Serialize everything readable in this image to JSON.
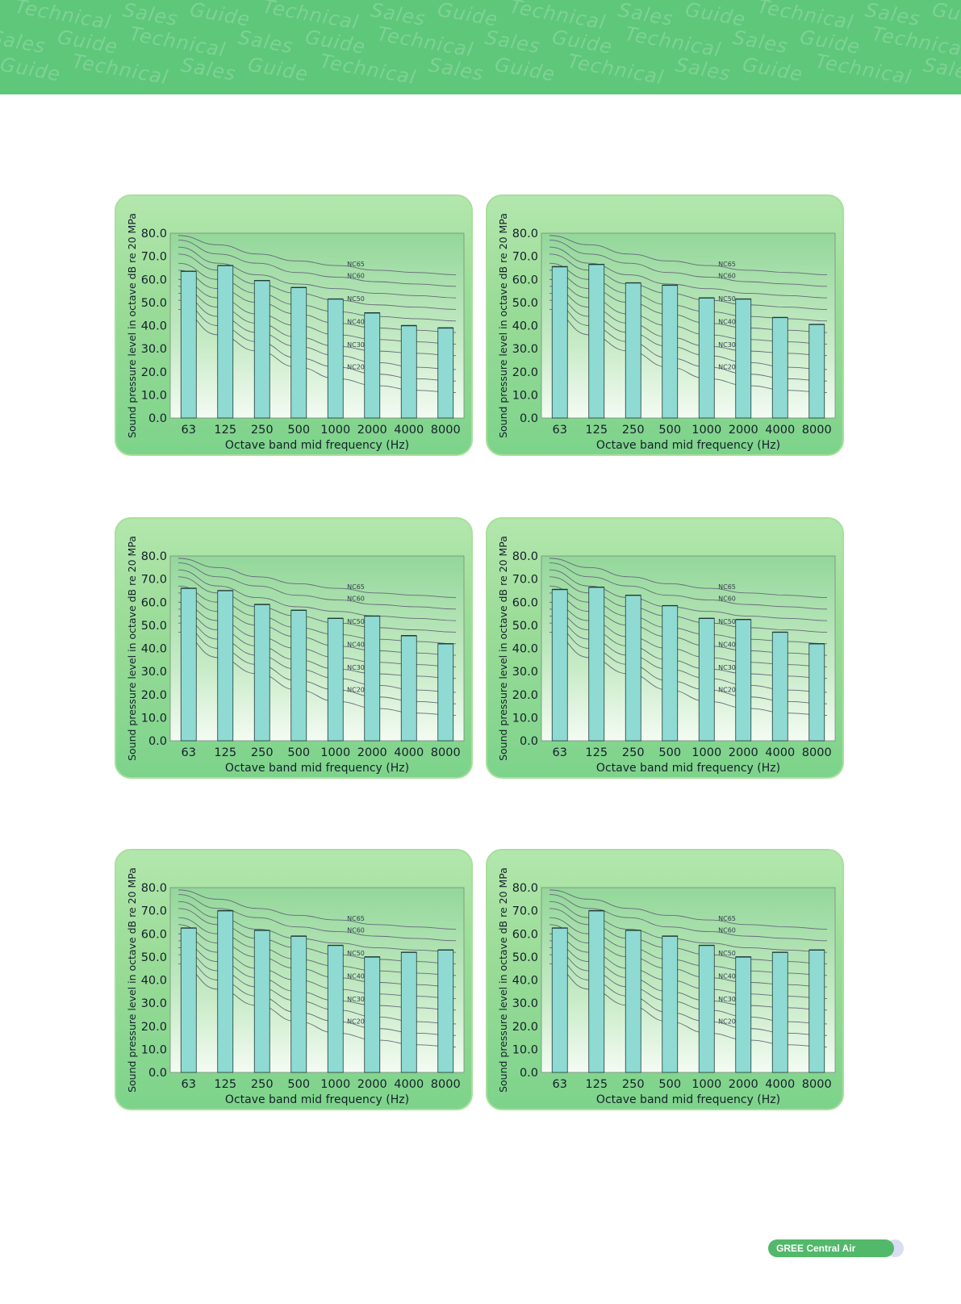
{
  "header": {
    "watermark_phrase": [
      "Technical",
      "Sales",
      "Guide"
    ]
  },
  "footer": {
    "badge_label": "GREE Central Air Conditioners"
  },
  "colors": {
    "banner": "#5ec77a",
    "bar_fill": "#8fdbd3",
    "nc_curve": "#666a7a",
    "panel_border": "#a8df9c"
  },
  "chart_data": [
    {
      "type": "bar",
      "categories": [
        "63",
        "125",
        "250",
        "500",
        "1000",
        "2000",
        "4000",
        "8000"
      ],
      "values": [
        63.5,
        66.0,
        59.5,
        56.5,
        51.5,
        45.5,
        40.0,
        39.0
      ],
      "ylabel": "Sound pressure level in octave dB re 20 MPa",
      "xlabel": "Octave band mid frequency (Hz)",
      "ylim": [
        0,
        80
      ],
      "yticks": [
        "0.0",
        "10.0",
        "20.0",
        "30.0",
        "40.0",
        "50.0",
        "60.0",
        "70.0",
        "80.0"
      ],
      "nc_curves": [
        {
          "name": "NC65",
          "values": [
            79,
            75,
            71,
            68,
            66,
            64,
            63,
            62
          ],
          "label": "NC65"
        },
        {
          "name": "NC60",
          "values": [
            77,
            71,
            67,
            63,
            61,
            59,
            58,
            57
          ],
          "label": "NC60"
        },
        {
          "name": "NC55",
          "values": [
            74,
            67,
            62,
            58,
            56,
            54,
            53,
            52
          ],
          "label": ""
        },
        {
          "name": "NC50",
          "values": [
            71,
            64,
            58,
            54,
            51,
            49,
            48,
            47
          ],
          "label": "NC50"
        },
        {
          "name": "NC45",
          "values": [
            67,
            60,
            54,
            49,
            46,
            44,
            43,
            42
          ],
          "label": ""
        },
        {
          "name": "NC40",
          "values": [
            64,
            56,
            50,
            45,
            41,
            39,
            38,
            37
          ],
          "label": "NC40"
        },
        {
          "name": "NC35",
          "values": [
            60,
            52,
            45,
            40,
            36,
            34,
            33,
            32
          ],
          "label": ""
        },
        {
          "name": "NC30",
          "values": [
            57,
            48,
            41,
            35,
            31,
            29,
            28,
            27
          ],
          "label": "NC30"
        },
        {
          "name": "NC25",
          "values": [
            54,
            44,
            37,
            31,
            27,
            24,
            22,
            21
          ],
          "label": ""
        },
        {
          "name": "NC20",
          "values": [
            51,
            40,
            33,
            26,
            22,
            19,
            17,
            16
          ],
          "label": "NC20"
        },
        {
          "name": "NC15",
          "values": [
            47,
            36,
            29,
            22,
            17,
            14,
            12,
            11
          ],
          "label": ""
        }
      ]
    },
    {
      "type": "bar",
      "categories": [
        "63",
        "125",
        "250",
        "500",
        "1000",
        "2000",
        "4000",
        "8000"
      ],
      "values": [
        65.5,
        66.5,
        58.5,
        57.5,
        52.0,
        51.5,
        43.5,
        40.5
      ],
      "ylabel": "Sound pressure level in octave dB re 20 MPa",
      "xlabel": "Octave band mid frequency (Hz)",
      "ylim": [
        0,
        80
      ],
      "yticks": [
        "0.0",
        "10.0",
        "20.0",
        "30.0",
        "40.0",
        "50.0",
        "60.0",
        "70.0",
        "80.0"
      ],
      "nc_curves": [
        {
          "name": "NC65",
          "values": [
            79,
            75,
            71,
            68,
            66,
            64,
            63,
            62
          ],
          "label": "NC65"
        },
        {
          "name": "NC60",
          "values": [
            77,
            71,
            67,
            63,
            61,
            59,
            58,
            57
          ],
          "label": "NC60"
        },
        {
          "name": "NC55",
          "values": [
            74,
            67,
            62,
            58,
            56,
            54,
            53,
            52
          ],
          "label": ""
        },
        {
          "name": "NC50",
          "values": [
            71,
            64,
            58,
            54,
            51,
            49,
            48,
            47
          ],
          "label": "NC50"
        },
        {
          "name": "NC45",
          "values": [
            67,
            60,
            54,
            49,
            46,
            44,
            43,
            42
          ],
          "label": ""
        },
        {
          "name": "NC40",
          "values": [
            64,
            56,
            50,
            45,
            41,
            39,
            38,
            37
          ],
          "label": "NC40"
        },
        {
          "name": "NC35",
          "values": [
            60,
            52,
            45,
            40,
            36,
            34,
            33,
            32
          ],
          "label": ""
        },
        {
          "name": "NC30",
          "values": [
            57,
            48,
            41,
            35,
            31,
            29,
            28,
            27
          ],
          "label": "NC30"
        },
        {
          "name": "NC25",
          "values": [
            54,
            44,
            37,
            31,
            27,
            24,
            22,
            21
          ],
          "label": ""
        },
        {
          "name": "NC20",
          "values": [
            51,
            40,
            33,
            26,
            22,
            19,
            17,
            16
          ],
          "label": "NC20"
        },
        {
          "name": "NC15",
          "values": [
            47,
            36,
            29,
            22,
            17,
            14,
            12,
            11
          ],
          "label": ""
        }
      ]
    },
    {
      "type": "bar",
      "categories": [
        "63",
        "125",
        "250",
        "500",
        "1000",
        "2000",
        "4000",
        "8000"
      ],
      "values": [
        66.0,
        65.0,
        59.0,
        56.5,
        53.0,
        54.0,
        45.5,
        42.0
      ],
      "ylabel": "Sound pressure level in octave dB re 20 MPa",
      "xlabel": "Octave band mid frequency (Hz)",
      "ylim": [
        0,
        80
      ],
      "yticks": [
        "0.0",
        "10.0",
        "20.0",
        "30.0",
        "40.0",
        "50.0",
        "60.0",
        "70.0",
        "80.0"
      ],
      "nc_curves": [
        {
          "name": "NC65",
          "values": [
            79,
            75,
            71,
            68,
            66,
            64,
            63,
            62
          ],
          "label": "NC65"
        },
        {
          "name": "NC60",
          "values": [
            77,
            71,
            67,
            63,
            61,
            59,
            58,
            57
          ],
          "label": "NC60"
        },
        {
          "name": "NC55",
          "values": [
            74,
            67,
            62,
            58,
            56,
            54,
            53,
            52
          ],
          "label": ""
        },
        {
          "name": "NC50",
          "values": [
            71,
            64,
            58,
            54,
            51,
            49,
            48,
            47
          ],
          "label": "NC50"
        },
        {
          "name": "NC45",
          "values": [
            67,
            60,
            54,
            49,
            46,
            44,
            43,
            42
          ],
          "label": ""
        },
        {
          "name": "NC40",
          "values": [
            64,
            56,
            50,
            45,
            41,
            39,
            38,
            37
          ],
          "label": "NC40"
        },
        {
          "name": "NC35",
          "values": [
            60,
            52,
            45,
            40,
            36,
            34,
            33,
            32
          ],
          "label": ""
        },
        {
          "name": "NC30",
          "values": [
            57,
            48,
            41,
            35,
            31,
            29,
            28,
            27
          ],
          "label": "NC30"
        },
        {
          "name": "NC25",
          "values": [
            54,
            44,
            37,
            31,
            27,
            24,
            22,
            21
          ],
          "label": ""
        },
        {
          "name": "NC20",
          "values": [
            51,
            40,
            33,
            26,
            22,
            19,
            17,
            16
          ],
          "label": "NC20"
        },
        {
          "name": "NC15",
          "values": [
            47,
            36,
            29,
            22,
            17,
            14,
            12,
            11
          ],
          "label": ""
        }
      ]
    },
    {
      "type": "bar",
      "categories": [
        "63",
        "125",
        "250",
        "500",
        "1000",
        "2000",
        "4000",
        "8000"
      ],
      "values": [
        65.5,
        66.5,
        63.0,
        58.5,
        53.0,
        52.5,
        47.0,
        42.0
      ],
      "ylabel": "Sound pressure level in octave dB re 20 MPa",
      "xlabel": "Octave band mid frequency (Hz)",
      "ylim": [
        0,
        80
      ],
      "yticks": [
        "0.0",
        "10.0",
        "20.0",
        "30.0",
        "40.0",
        "50.0",
        "60.0",
        "70.0",
        "80.0"
      ],
      "nc_curves": [
        {
          "name": "NC65",
          "values": [
            79,
            75,
            71,
            68,
            66,
            64,
            63,
            62
          ],
          "label": "NC65"
        },
        {
          "name": "NC60",
          "values": [
            77,
            71,
            67,
            63,
            61,
            59,
            58,
            57
          ],
          "label": "NC60"
        },
        {
          "name": "NC55",
          "values": [
            74,
            67,
            62,
            58,
            56,
            54,
            53,
            52
          ],
          "label": ""
        },
        {
          "name": "NC50",
          "values": [
            71,
            64,
            58,
            54,
            51,
            49,
            48,
            47
          ],
          "label": "NC50"
        },
        {
          "name": "NC45",
          "values": [
            67,
            60,
            54,
            49,
            46,
            44,
            43,
            42
          ],
          "label": ""
        },
        {
          "name": "NC40",
          "values": [
            64,
            56,
            50,
            45,
            41,
            39,
            38,
            37
          ],
          "label": "NC40"
        },
        {
          "name": "NC35",
          "values": [
            60,
            52,
            45,
            40,
            36,
            34,
            33,
            32
          ],
          "label": ""
        },
        {
          "name": "NC30",
          "values": [
            57,
            48,
            41,
            35,
            31,
            29,
            28,
            27
          ],
          "label": "NC30"
        },
        {
          "name": "NC25",
          "values": [
            54,
            44,
            37,
            31,
            27,
            24,
            22,
            21
          ],
          "label": ""
        },
        {
          "name": "NC20",
          "values": [
            51,
            40,
            33,
            26,
            22,
            19,
            17,
            16
          ],
          "label": "NC20"
        },
        {
          "name": "NC15",
          "values": [
            47,
            36,
            29,
            22,
            17,
            14,
            12,
            11
          ],
          "label": ""
        }
      ]
    },
    {
      "type": "bar",
      "categories": [
        "63",
        "125",
        "250",
        "500",
        "1000",
        "2000",
        "4000",
        "8000"
      ],
      "values": [
        62.5,
        70.0,
        61.5,
        59.0,
        55.0,
        50.0,
        52.0,
        53.0
      ],
      "ylabel": "Sound pressure level in octave dB re 20 MPa",
      "xlabel": "Octave band mid frequency (Hz)",
      "ylim": [
        0,
        80
      ],
      "yticks": [
        "0.0",
        "10.0",
        "20.0",
        "30.0",
        "40.0",
        "50.0",
        "60.0",
        "70.0",
        "80.0"
      ],
      "nc_curves": [
        {
          "name": "NC65",
          "values": [
            79,
            75,
            71,
            68,
            66,
            64,
            63,
            62
          ],
          "label": "NC65"
        },
        {
          "name": "NC60",
          "values": [
            77,
            71,
            67,
            63,
            61,
            59,
            58,
            57
          ],
          "label": "NC60"
        },
        {
          "name": "NC55",
          "values": [
            74,
            67,
            62,
            58,
            56,
            54,
            53,
            52
          ],
          "label": ""
        },
        {
          "name": "NC50",
          "values": [
            71,
            64,
            58,
            54,
            51,
            49,
            48,
            47
          ],
          "label": "NC50"
        },
        {
          "name": "NC45",
          "values": [
            67,
            60,
            54,
            49,
            46,
            44,
            43,
            42
          ],
          "label": ""
        },
        {
          "name": "NC40",
          "values": [
            64,
            56,
            50,
            45,
            41,
            39,
            38,
            37
          ],
          "label": "NC40"
        },
        {
          "name": "NC35",
          "values": [
            60,
            52,
            45,
            40,
            36,
            34,
            33,
            32
          ],
          "label": ""
        },
        {
          "name": "NC30",
          "values": [
            57,
            48,
            41,
            35,
            31,
            29,
            28,
            27
          ],
          "label": "NC30"
        },
        {
          "name": "NC25",
          "values": [
            54,
            44,
            37,
            31,
            27,
            24,
            22,
            21
          ],
          "label": ""
        },
        {
          "name": "NC20",
          "values": [
            51,
            40,
            33,
            26,
            22,
            19,
            17,
            16
          ],
          "label": "NC20"
        },
        {
          "name": "NC15",
          "values": [
            47,
            36,
            29,
            22,
            17,
            14,
            12,
            11
          ],
          "label": ""
        }
      ]
    },
    {
      "type": "bar",
      "categories": [
        "63",
        "125",
        "250",
        "500",
        "1000",
        "2000",
        "4000",
        "8000"
      ],
      "values": [
        62.5,
        70.0,
        61.5,
        59.0,
        55.0,
        50.0,
        52.0,
        53.0
      ],
      "ylabel": "Sound pressure level in octave dB re 20 MPa",
      "xlabel": "Octave band mid frequency (Hz)",
      "ylim": [
        0,
        80
      ],
      "yticks": [
        "0.0",
        "10.0",
        "20.0",
        "30.0",
        "40.0",
        "50.0",
        "60.0",
        "70.0",
        "80.0"
      ],
      "nc_curves": [
        {
          "name": "NC65",
          "values": [
            79,
            75,
            71,
            68,
            66,
            64,
            63,
            62
          ],
          "label": "NC65"
        },
        {
          "name": "NC60",
          "values": [
            77,
            71,
            67,
            63,
            61,
            59,
            58,
            57
          ],
          "label": "NC60"
        },
        {
          "name": "NC55",
          "values": [
            74,
            67,
            62,
            58,
            56,
            54,
            53,
            52
          ],
          "label": ""
        },
        {
          "name": "NC50",
          "values": [
            71,
            64,
            58,
            54,
            51,
            49,
            48,
            47
          ],
          "label": "NC50"
        },
        {
          "name": "NC45",
          "values": [
            67,
            60,
            54,
            49,
            46,
            44,
            43,
            42
          ],
          "label": ""
        },
        {
          "name": "NC40",
          "values": [
            64,
            56,
            50,
            45,
            41,
            39,
            38,
            37
          ],
          "label": "NC40"
        },
        {
          "name": "NC35",
          "values": [
            60,
            52,
            45,
            40,
            36,
            34,
            33,
            32
          ],
          "label": ""
        },
        {
          "name": "NC30",
          "values": [
            57,
            48,
            41,
            35,
            31,
            29,
            28,
            27
          ],
          "label": "NC30"
        },
        {
          "name": "NC25",
          "values": [
            54,
            44,
            37,
            31,
            27,
            24,
            22,
            21
          ],
          "label": ""
        },
        {
          "name": "NC20",
          "values": [
            51,
            40,
            33,
            26,
            22,
            19,
            17,
            16
          ],
          "label": "NC20"
        },
        {
          "name": "NC15",
          "values": [
            47,
            36,
            29,
            22,
            17,
            14,
            12,
            11
          ],
          "label": ""
        }
      ]
    }
  ]
}
